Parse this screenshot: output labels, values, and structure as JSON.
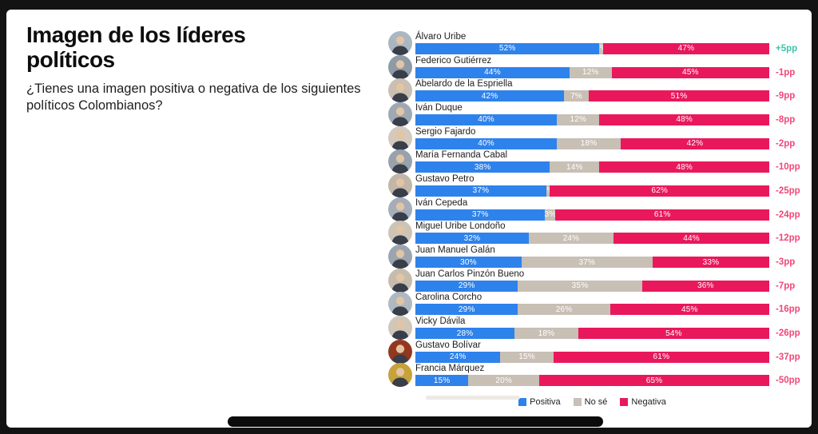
{
  "page": {
    "title": "Imagen de los líderes políticos",
    "subtitle": "¿Tienes una imagen positiva o negativa de los siguientes políticos Colombianos?"
  },
  "colors": {
    "positive": "#2e82ec",
    "neutral": "#c8bfb5",
    "negative": "#e9185c",
    "diff_positive": "#3ec3a7",
    "diff_negative": "#ee4878",
    "slide_background": "#ffffff",
    "frame_background": "#131313"
  },
  "legend": {
    "items": [
      {
        "label": "Positiva",
        "key": "positive"
      },
      {
        "label": "No sé",
        "key": "neutral"
      },
      {
        "label": "Negativa",
        "key": "negative"
      }
    ]
  },
  "chart_data": {
    "type": "bar",
    "orientation": "horizontal",
    "stacked": true,
    "unit": "%",
    "title": "Imagen de los líderes políticos",
    "series": [
      "Positiva",
      "No sé",
      "Negativa"
    ],
    "legend_position": "bottom",
    "rows": [
      {
        "name": "Álvaro Uribe",
        "positiva": 52,
        "no_se": 1,
        "negativa": 47,
        "diff": "+5pp"
      },
      {
        "name": "Federico Gutiérrez",
        "positiva": 44,
        "no_se": 12,
        "negativa": 45,
        "diff": "-1pp"
      },
      {
        "name": "Abelardo de la Espriella",
        "positiva": 42,
        "no_se": 7,
        "negativa": 51,
        "diff": "-9pp"
      },
      {
        "name": "Iván Duque",
        "positiva": 40,
        "no_se": 12,
        "negativa": 48,
        "diff": "-8pp"
      },
      {
        "name": "Sergio Fajardo",
        "positiva": 40,
        "no_se": 18,
        "negativa": 42,
        "diff": "-2pp"
      },
      {
        "name": "María Fernanda Cabal",
        "positiva": 38,
        "no_se": 14,
        "negativa": 48,
        "diff": "-10pp"
      },
      {
        "name": "Gustavo Petro",
        "positiva": 37,
        "no_se": 1,
        "negativa": 62,
        "diff": "-25pp"
      },
      {
        "name": "Iván Cepeda",
        "positiva": 37,
        "no_se": 3,
        "negativa": 61,
        "diff": "-24pp"
      },
      {
        "name": "Miguel Uribe Londoño",
        "positiva": 32,
        "no_se": 24,
        "negativa": 44,
        "diff": "-12pp"
      },
      {
        "name": "Juan Manuel Galán",
        "positiva": 30,
        "no_se": 37,
        "negativa": 33,
        "diff": "-3pp"
      },
      {
        "name": "Juan Carlos Pinzón Bueno",
        "positiva": 29,
        "no_se": 35,
        "negativa": 36,
        "diff": "-7pp"
      },
      {
        "name": "Carolina Corcho",
        "positiva": 29,
        "no_se": 26,
        "negativa": 45,
        "diff": "-16pp"
      },
      {
        "name": "Vicky Dávila",
        "positiva": 28,
        "no_se": 18,
        "negativa": 54,
        "diff": "-26pp"
      },
      {
        "name": "Gustavo Bolívar",
        "positiva": 24,
        "no_se": 15,
        "negativa": 61,
        "diff": "-37pp"
      },
      {
        "name": "Francia Márquez",
        "positiva": 15,
        "no_se": 20,
        "negativa": 65,
        "diff": "-50pp"
      }
    ]
  }
}
